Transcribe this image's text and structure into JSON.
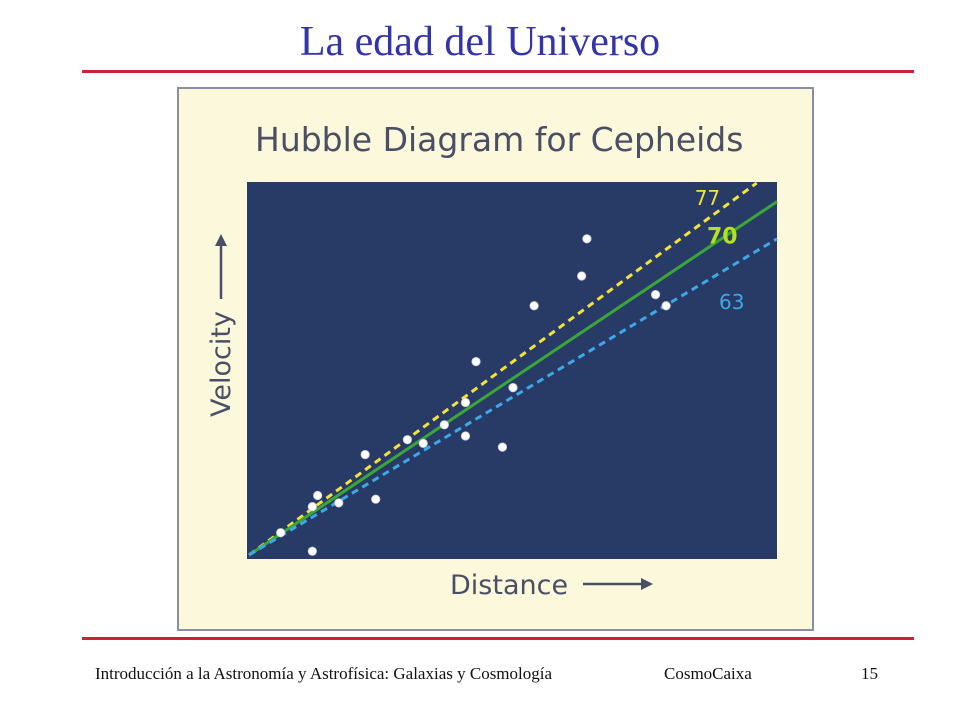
{
  "slide": {
    "title": "La edad del Universo",
    "footer_left": "Introducción a la Astronomía y Astrofísica: Galaxias y Cosmología",
    "footer_center": "CosmoCaixa",
    "page_number": "15"
  },
  "chart_data": {
    "type": "scatter",
    "title": "Hubble Diagram for Cepheids",
    "xlabel": "Distance",
    "ylabel": "Velocity",
    "xlim": [
      0,
      1
    ],
    "ylim": [
      0,
      1
    ],
    "grid": false,
    "points": [
      {
        "x": 0.06,
        "y": 0.06
      },
      {
        "x": 0.12,
        "y": 0.01
      },
      {
        "x": 0.12,
        "y": 0.13
      },
      {
        "x": 0.13,
        "y": 0.16
      },
      {
        "x": 0.17,
        "y": 0.14
      },
      {
        "x": 0.22,
        "y": 0.27
      },
      {
        "x": 0.24,
        "y": 0.15
      },
      {
        "x": 0.3,
        "y": 0.31
      },
      {
        "x": 0.33,
        "y": 0.3
      },
      {
        "x": 0.37,
        "y": 0.35
      },
      {
        "x": 0.41,
        "y": 0.32
      },
      {
        "x": 0.41,
        "y": 0.41
      },
      {
        "x": 0.43,
        "y": 0.52
      },
      {
        "x": 0.48,
        "y": 0.29
      },
      {
        "x": 0.5,
        "y": 0.45
      },
      {
        "x": 0.54,
        "y": 0.67
      },
      {
        "x": 0.63,
        "y": 0.75
      },
      {
        "x": 0.64,
        "y": 0.85
      },
      {
        "x": 0.77,
        "y": 0.7
      },
      {
        "x": 0.79,
        "y": 0.67
      }
    ],
    "series": [
      {
        "name": "77",
        "slope": 1.04,
        "color": "#f2e23a",
        "style": "dashed"
      },
      {
        "name": "70",
        "slope": 0.95,
        "color": "#3aa63a",
        "style": "solid"
      },
      {
        "name": "63",
        "slope": 0.85,
        "color": "#3da8e8",
        "style": "dashed"
      }
    ],
    "colors": {
      "plot_background": "#283a66",
      "point": "#ffffff",
      "label_77": "#f2e23a",
      "label_70": "#b4e01e",
      "label_63": "#3da8e8",
      "axis_text": "#4a4f66"
    }
  }
}
